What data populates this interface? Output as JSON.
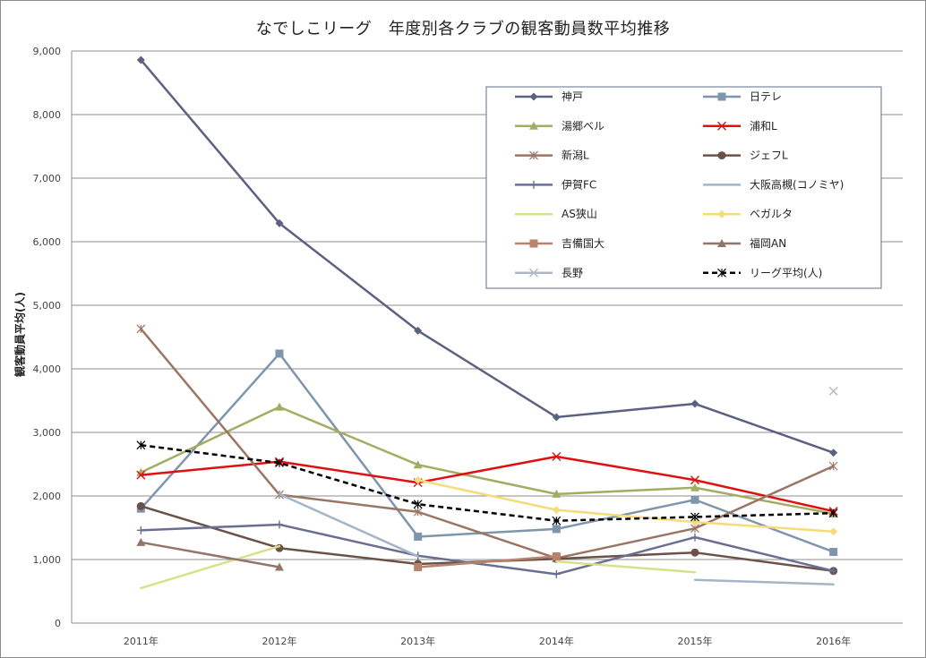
{
  "chart_data": {
    "type": "line",
    "title": "なでしこリーグ　年度別各クラブの観客動員数平均推移",
    "xlabel": "",
    "ylabel": "観客動員平均(人)",
    "categories": [
      "2011年",
      "2012年",
      "2013年",
      "2014年",
      "2015年",
      "2016年"
    ],
    "ylim": [
      0,
      9000
    ],
    "yticks": [
      "0",
      "1,000",
      "2,000",
      "3,000",
      "4,000",
      "5,000",
      "6,000",
      "7,000",
      "8,000",
      "9,000"
    ],
    "grid": true,
    "legend_position": "top-right",
    "series": [
      {
        "name": "神戸",
        "color": "#5b6180",
        "marker": "diamond",
        "values": [
          8860,
          6290,
          4600,
          3240,
          3450,
          2680
        ]
      },
      {
        "name": "日テレ",
        "color": "#7f95ab",
        "marker": "square",
        "values": [
          1800,
          4240,
          1360,
          1480,
          1940,
          1120
        ]
      },
      {
        "name": "湯郷ベル",
        "color": "#a3ad62",
        "marker": "triangle",
        "values": [
          2370,
          3400,
          2490,
          2030,
          2130,
          1720
        ]
      },
      {
        "name": "浦和L",
        "color": "#e01010",
        "marker": "x",
        "values": [
          2330,
          2540,
          2210,
          2620,
          2250,
          1760
        ]
      },
      {
        "name": "新潟L",
        "color": "#9a7564",
        "marker": "star",
        "values": [
          4630,
          2020,
          1750,
          1020,
          1490,
          2470
        ]
      },
      {
        "name": "ジェフL",
        "color": "#6b5248",
        "marker": "circle",
        "values": [
          1840,
          1180,
          930,
          1010,
          1110,
          820
        ]
      },
      {
        "name": "伊賀FC",
        "color": "#6a6f92",
        "marker": "plus",
        "values": [
          1460,
          1550,
          1060,
          770,
          1350,
          820
        ]
      },
      {
        "name": "大阪高槻(コノミヤ)",
        "color": "#a3b5c6",
        "marker": "none",
        "values": [
          null,
          2030,
          1050,
          null,
          680,
          610
        ]
      },
      {
        "name": "AS狭山",
        "color": "#d9e08a",
        "marker": "none",
        "values": [
          550,
          1210,
          null,
          970,
          800,
          null
        ]
      },
      {
        "name": "ベガルタ",
        "color": "#f5dc7a",
        "marker": "diamond",
        "values": [
          null,
          null,
          2250,
          1780,
          1590,
          1440
        ]
      },
      {
        "name": "吉備国大",
        "color": "#b9826a",
        "marker": "square",
        "values": [
          null,
          null,
          880,
          1050,
          null,
          null
        ]
      },
      {
        "name": "福岡AN",
        "color": "#94756a",
        "marker": "triangle",
        "values": [
          1270,
          880,
          null,
          null,
          null,
          null
        ]
      },
      {
        "name": "長野",
        "color": "#b0b8c8",
        "marker": "x",
        "values": [
          null,
          null,
          null,
          null,
          null,
          3650
        ]
      },
      {
        "name": "リーグ平均(人)",
        "color": "#000000",
        "marker": "star",
        "dashed": true,
        "values": [
          2800,
          2520,
          1870,
          1610,
          1670,
          1730
        ]
      }
    ]
  }
}
